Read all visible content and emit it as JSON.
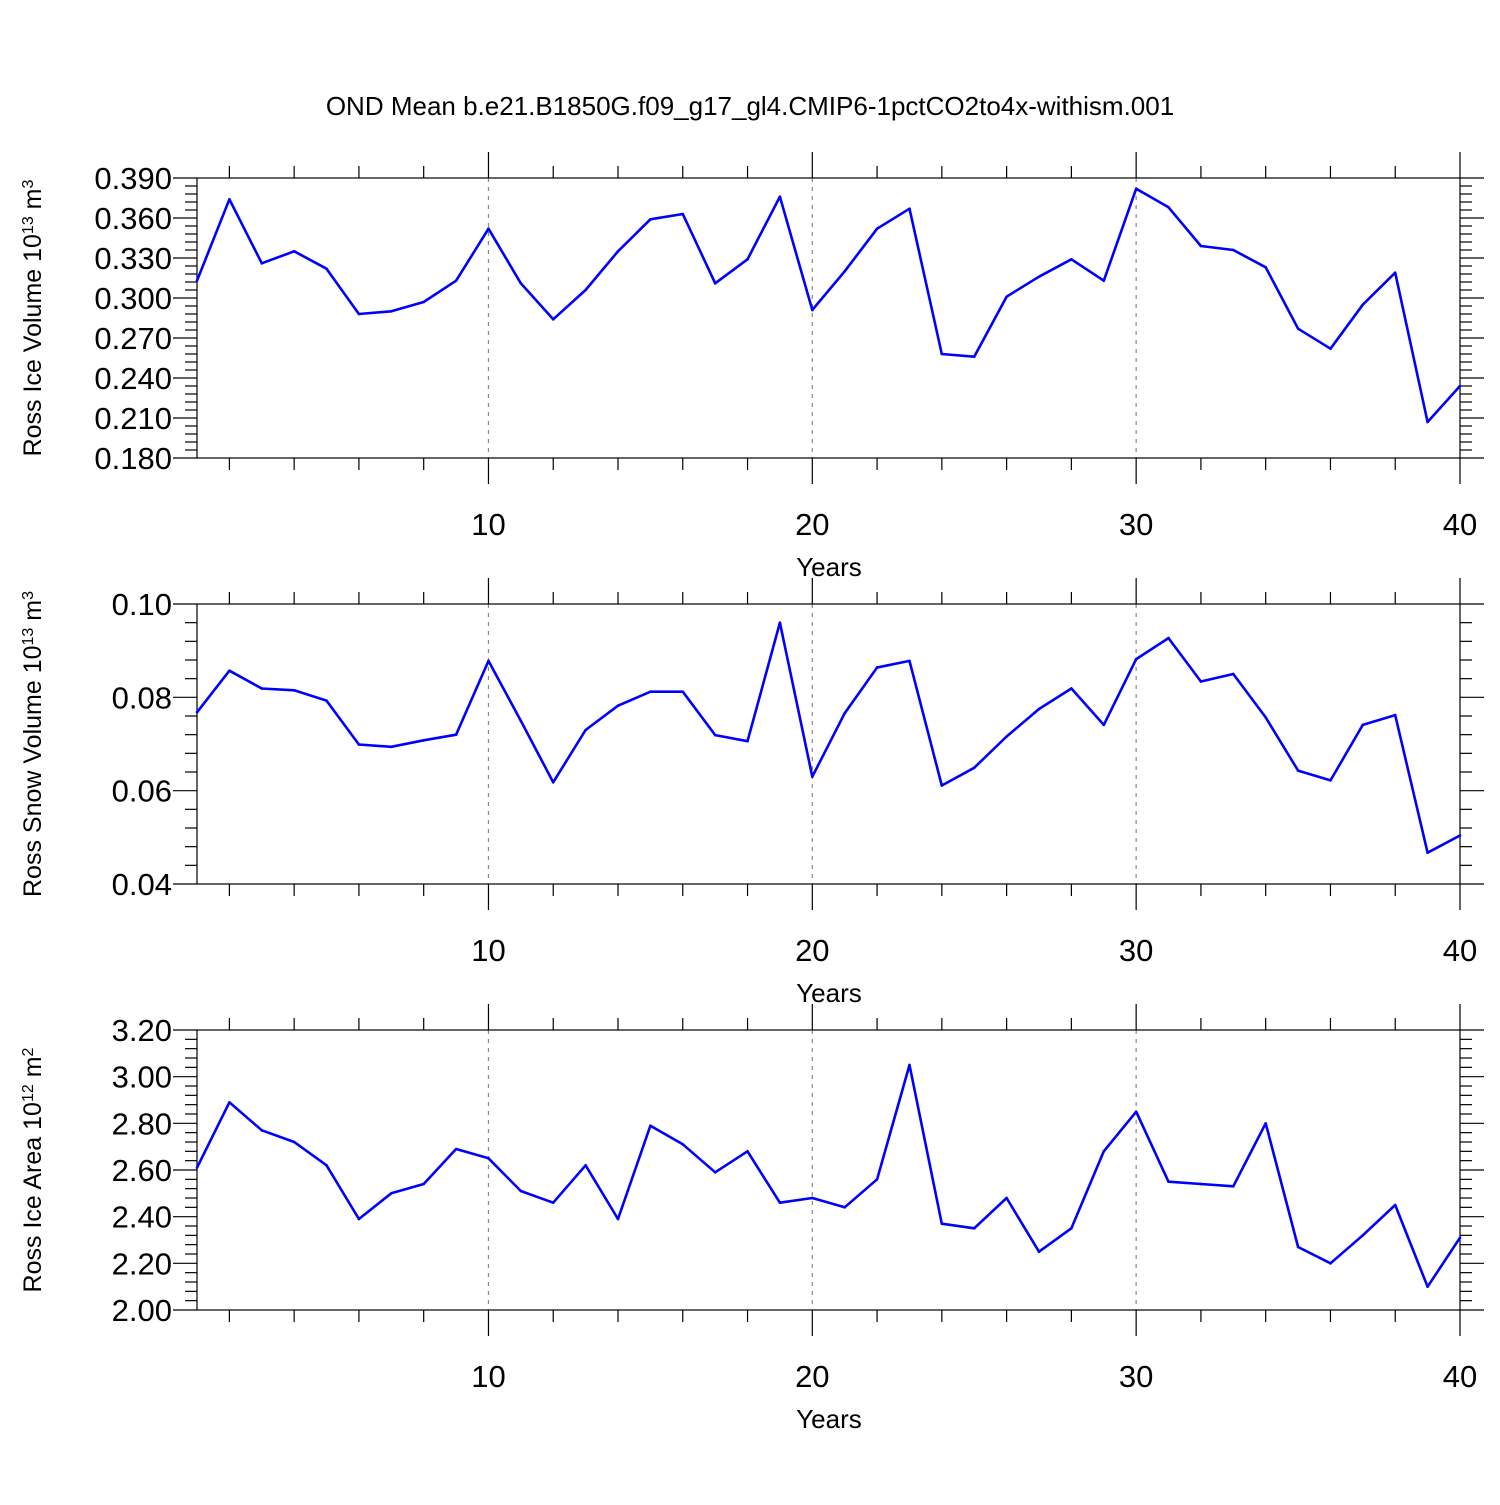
{
  "title": "OND Mean b.e21.B1850G.f09_g17_gl4.CMIP6-1pctCO2to4x-withism.001",
  "chart_data": [
    {
      "type": "line",
      "ylabel": "Ross Ice Volume 10",
      "ylabel_exp": "13",
      "ylabel_unit": " m",
      "ylabel_unit_exp": "3",
      "xlabel": "Years",
      "xlim": [
        1,
        40
      ],
      "ylim": [
        0.18,
        0.39
      ],
      "xticks": [
        10,
        20,
        30,
        40
      ],
      "xtick_labels": [
        "10",
        "20",
        "30",
        "40"
      ],
      "yticks": [
        0.18,
        0.21,
        0.24,
        0.27,
        0.3,
        0.33,
        0.36,
        0.39
      ],
      "ytick_labels": [
        "0.180",
        "0.210",
        "0.240",
        "0.270",
        "0.300",
        "0.330",
        "0.360",
        "0.390"
      ],
      "series_color": "#0000ff",
      "x": [
        1,
        2,
        3,
        4,
        5,
        6,
        7,
        8,
        9,
        10,
        11,
        12,
        13,
        14,
        15,
        16,
        17,
        18,
        19,
        20,
        21,
        22,
        23,
        24,
        25,
        26,
        27,
        28,
        29,
        30,
        31,
        32,
        33,
        34,
        35,
        36,
        37,
        38,
        39,
        40
      ],
      "y": [
        0.313,
        0.374,
        0.326,
        0.335,
        0.322,
        0.288,
        0.29,
        0.297,
        0.313,
        0.352,
        0.311,
        0.284,
        0.306,
        0.335,
        0.359,
        0.363,
        0.311,
        0.329,
        0.376,
        0.291,
        0.32,
        0.352,
        0.367,
        0.258,
        0.256,
        0.301,
        0.316,
        0.329,
        0.313,
        0.382,
        0.368,
        0.339,
        0.336,
        0.323,
        0.277,
        0.262,
        0.295,
        0.319,
        0.207,
        0.234
      ]
    },
    {
      "type": "line",
      "ylabel": "Ross Snow Volume 10",
      "ylabel_exp": "13",
      "ylabel_unit": " m",
      "ylabel_unit_exp": "3",
      "xlabel": "Years",
      "xlim": [
        1,
        40
      ],
      "ylim": [
        0.04,
        0.1
      ],
      "xticks": [
        10,
        20,
        30,
        40
      ],
      "xtick_labels": [
        "10",
        "20",
        "30",
        "40"
      ],
      "yticks": [
        0.04,
        0.06,
        0.08,
        0.1
      ],
      "ytick_labels": [
        "0.04",
        "0.06",
        "0.08",
        "0.10"
      ],
      "series_color": "#0000ff",
      "x": [
        1,
        2,
        3,
        4,
        5,
        6,
        7,
        8,
        9,
        10,
        11,
        12,
        13,
        14,
        15,
        16,
        17,
        18,
        19,
        20,
        21,
        22,
        23,
        24,
        25,
        26,
        27,
        28,
        29,
        30,
        31,
        32,
        33,
        34,
        35,
        36,
        37,
        38,
        39,
        40
      ],
      "y": [
        0.0768,
        0.0857,
        0.0819,
        0.0815,
        0.0793,
        0.0699,
        0.0694,
        0.0708,
        0.072,
        0.0878,
        0.075,
        0.0618,
        0.073,
        0.0782,
        0.0812,
        0.0812,
        0.0719,
        0.0706,
        0.096,
        0.063,
        0.0766,
        0.0864,
        0.0878,
        0.0611,
        0.0649,
        0.0716,
        0.0775,
        0.0819,
        0.0741,
        0.0882,
        0.0927,
        0.0834,
        0.085,
        0.0757,
        0.0643,
        0.0622,
        0.0741,
        0.0762,
        0.0467,
        0.0504
      ]
    },
    {
      "type": "line",
      "ylabel": "Ross Ice Area 10",
      "ylabel_exp": "12",
      "ylabel_unit": " m",
      "ylabel_unit_exp": "2",
      "xlabel": "Years",
      "xlim": [
        1,
        40
      ],
      "ylim": [
        2.0,
        3.2
      ],
      "xticks": [
        10,
        20,
        30,
        40
      ],
      "xtick_labels": [
        "10",
        "20",
        "30",
        "40"
      ],
      "yticks": [
        2.0,
        2.2,
        2.4,
        2.6,
        2.8,
        3.0,
        3.2
      ],
      "ytick_labels": [
        "2.00",
        "2.20",
        "2.40",
        "2.60",
        "2.80",
        "3.00",
        "3.20"
      ],
      "series_color": "#0000ff",
      "x": [
        1,
        2,
        3,
        4,
        5,
        6,
        7,
        8,
        9,
        10,
        11,
        12,
        13,
        14,
        15,
        16,
        17,
        18,
        19,
        20,
        21,
        22,
        23,
        24,
        25,
        26,
        27,
        28,
        29,
        30,
        31,
        32,
        33,
        34,
        35,
        36,
        37,
        38,
        39,
        40
      ],
      "y": [
        2.61,
        2.89,
        2.77,
        2.72,
        2.62,
        2.39,
        2.5,
        2.54,
        2.69,
        2.65,
        2.51,
        2.46,
        2.62,
        2.39,
        2.79,
        2.71,
        2.59,
        2.68,
        2.46,
        2.48,
        2.44,
        2.56,
        3.05,
        2.37,
        2.35,
        2.48,
        2.25,
        2.35,
        2.68,
        2.85,
        2.55,
        2.54,
        2.53,
        2.8,
        2.27,
        2.2,
        2.32,
        2.45,
        2.1,
        2.31
      ]
    }
  ]
}
